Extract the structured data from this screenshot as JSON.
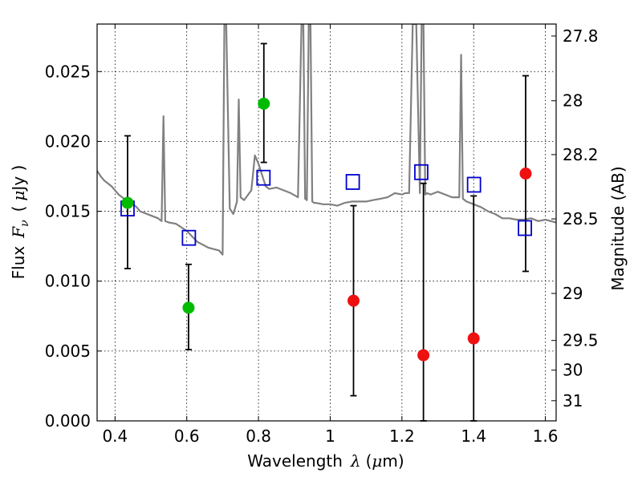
{
  "chart_data": {
    "type": "scatter",
    "title": "",
    "xlabel_text": "Wavelength",
    "xlabel_symbol": "λ",
    "xlabel_unit_open": "(",
    "xlabel_unit_mu": "μ",
    "xlabel_unit_rest": "m)",
    "ylabel_text": "Flux",
    "ylabel_symbol_F": "F",
    "ylabel_symbol_sub": "ν",
    "ylabel_unit_open": "(",
    "ylabel_unit_mu": "μ",
    "ylabel_unit_rest": "Jy )",
    "y2label": "Magnitude (AB)",
    "xlim": [
      0.35,
      1.63
    ],
    "ylim": [
      0.0,
      0.0284
    ],
    "grid": true,
    "grid_style": "dotted",
    "x_ticks": [
      0.4,
      0.6,
      0.8,
      1.0,
      1.2,
      1.4,
      1.6
    ],
    "x_tick_labels": [
      "0.4",
      "0.6",
      "0.8",
      "1",
      "1.2",
      "1.4",
      "1.6"
    ],
    "y_ticks": [
      0.0,
      0.005,
      0.01,
      0.015,
      0.02,
      0.025
    ],
    "y_tick_labels": [
      "0.000",
      "0.005",
      "0.010",
      "0.015",
      "0.020",
      "0.025"
    ],
    "y2_ticks": [
      27.8,
      28.0,
      28.2,
      28.5,
      29.0,
      29.5,
      30.0,
      31.0
    ],
    "y2_tick_labels": [
      "27.8",
      "28",
      "28.2",
      "28.5",
      "29",
      "29.5",
      "30",
      "31"
    ],
    "colors": {
      "model_line": "#808080",
      "green_points": "#00bb00",
      "red_points": "#ee1111",
      "squares": "#0000cc",
      "errorbars": "#000000"
    },
    "series": [
      {
        "kind": "model-spectrum",
        "color": "#808080",
        "x": [
          0.35,
          0.36,
          0.37,
          0.38,
          0.39,
          0.4,
          0.41,
          0.42,
          0.43,
          0.44,
          0.45,
          0.46,
          0.47,
          0.48,
          0.5,
          0.52,
          0.53,
          0.535,
          0.54,
          0.55,
          0.57,
          0.6,
          0.63,
          0.66,
          0.69,
          0.7,
          0.705,
          0.71,
          0.72,
          0.73,
          0.74,
          0.745,
          0.75,
          0.76,
          0.78,
          0.79,
          0.8,
          0.815,
          0.82,
          0.83,
          0.85,
          0.87,
          0.89,
          0.91,
          0.92,
          0.925,
          0.93,
          0.935,
          0.94,
          0.945,
          0.95,
          0.955,
          0.96,
          0.98,
          1.0,
          1.02,
          1.04,
          1.06,
          1.08,
          1.1,
          1.12,
          1.14,
          1.16,
          1.18,
          1.2,
          1.21,
          1.22,
          1.23,
          1.24,
          1.25,
          1.255,
          1.26,
          1.265,
          1.27,
          1.28,
          1.29,
          1.3,
          1.32,
          1.34,
          1.36,
          1.365,
          1.37,
          1.38,
          1.4,
          1.42,
          1.44,
          1.46,
          1.48,
          1.5,
          1.52,
          1.54,
          1.56,
          1.58,
          1.6,
          1.63
        ],
        "y": [
          0.0179,
          0.0175,
          0.0172,
          0.017,
          0.0168,
          0.0165,
          0.0162,
          0.016,
          0.0158,
          0.0157,
          0.0155,
          0.0153,
          0.015,
          0.0149,
          0.0147,
          0.0145,
          0.0143,
          0.0218,
          0.0143,
          0.0142,
          0.0141,
          0.0136,
          0.0128,
          0.0124,
          0.0122,
          0.0119,
          0.0284,
          0.0284,
          0.0152,
          0.0148,
          0.0157,
          0.023,
          0.016,
          0.0158,
          0.0165,
          0.019,
          0.0184,
          0.0172,
          0.0168,
          0.0166,
          0.0167,
          0.0165,
          0.0163,
          0.016,
          0.0284,
          0.0284,
          0.0159,
          0.0158,
          0.0284,
          0.0284,
          0.0157,
          0.0156,
          0.0156,
          0.0155,
          0.0155,
          0.0154,
          0.0156,
          0.0157,
          0.0157,
          0.0157,
          0.0158,
          0.0159,
          0.016,
          0.0163,
          0.0162,
          0.0163,
          0.0163,
          0.0284,
          0.0284,
          0.0163,
          0.0284,
          0.0284,
          0.0162,
          0.0163,
          0.0162,
          0.0163,
          0.0164,
          0.0162,
          0.016,
          0.016,
          0.0262,
          0.0159,
          0.0157,
          0.0155,
          0.0153,
          0.015,
          0.0148,
          0.0145,
          0.0145,
          0.0144,
          0.0144,
          0.0145,
          0.0143,
          0.0144,
          0.0142
        ]
      },
      {
        "name": "",
        "kind": "measured-points-green",
        "color": "#00bb00",
        "points": [
          {
            "x": 0.435,
            "y": 0.0156,
            "err_low": 0.0047,
            "err_high": 0.0048
          },
          {
            "x": 0.605,
            "y": 0.0081,
            "err_low": 0.003,
            "err_high": 0.0031
          },
          {
            "x": 0.815,
            "y": 0.0227,
            "err_low": 0.0042,
            "err_high": 0.0043
          }
        ]
      },
      {
        "name": "",
        "kind": "measured-points-red",
        "color": "#ee1111",
        "points": [
          {
            "x": 1.065,
            "y": 0.0086,
            "err_low": 0.0068,
            "err_high": 0.0068
          },
          {
            "x": 1.26,
            "y": 0.0047,
            "err_low": 0.0047,
            "err_high": 0.0123
          },
          {
            "x": 1.4,
            "y": 0.0059,
            "err_low": 0.0059,
            "err_high": 0.0102
          },
          {
            "x": 1.545,
            "y": 0.0177,
            "err_low": 0.007,
            "err_high": 0.007
          }
        ]
      },
      {
        "name": "",
        "kind": "model-band-squares",
        "color": "#0000cc",
        "points": [
          {
            "x": 0.435,
            "y": 0.0152
          },
          {
            "x": 0.606,
            "y": 0.0131
          },
          {
            "x": 0.814,
            "y": 0.0174
          },
          {
            "x": 1.063,
            "y": 0.0171
          },
          {
            "x": 1.254,
            "y": 0.0178
          },
          {
            "x": 1.401,
            "y": 0.0169
          },
          {
            "x": 1.543,
            "y": 0.0138
          }
        ]
      }
    ]
  }
}
